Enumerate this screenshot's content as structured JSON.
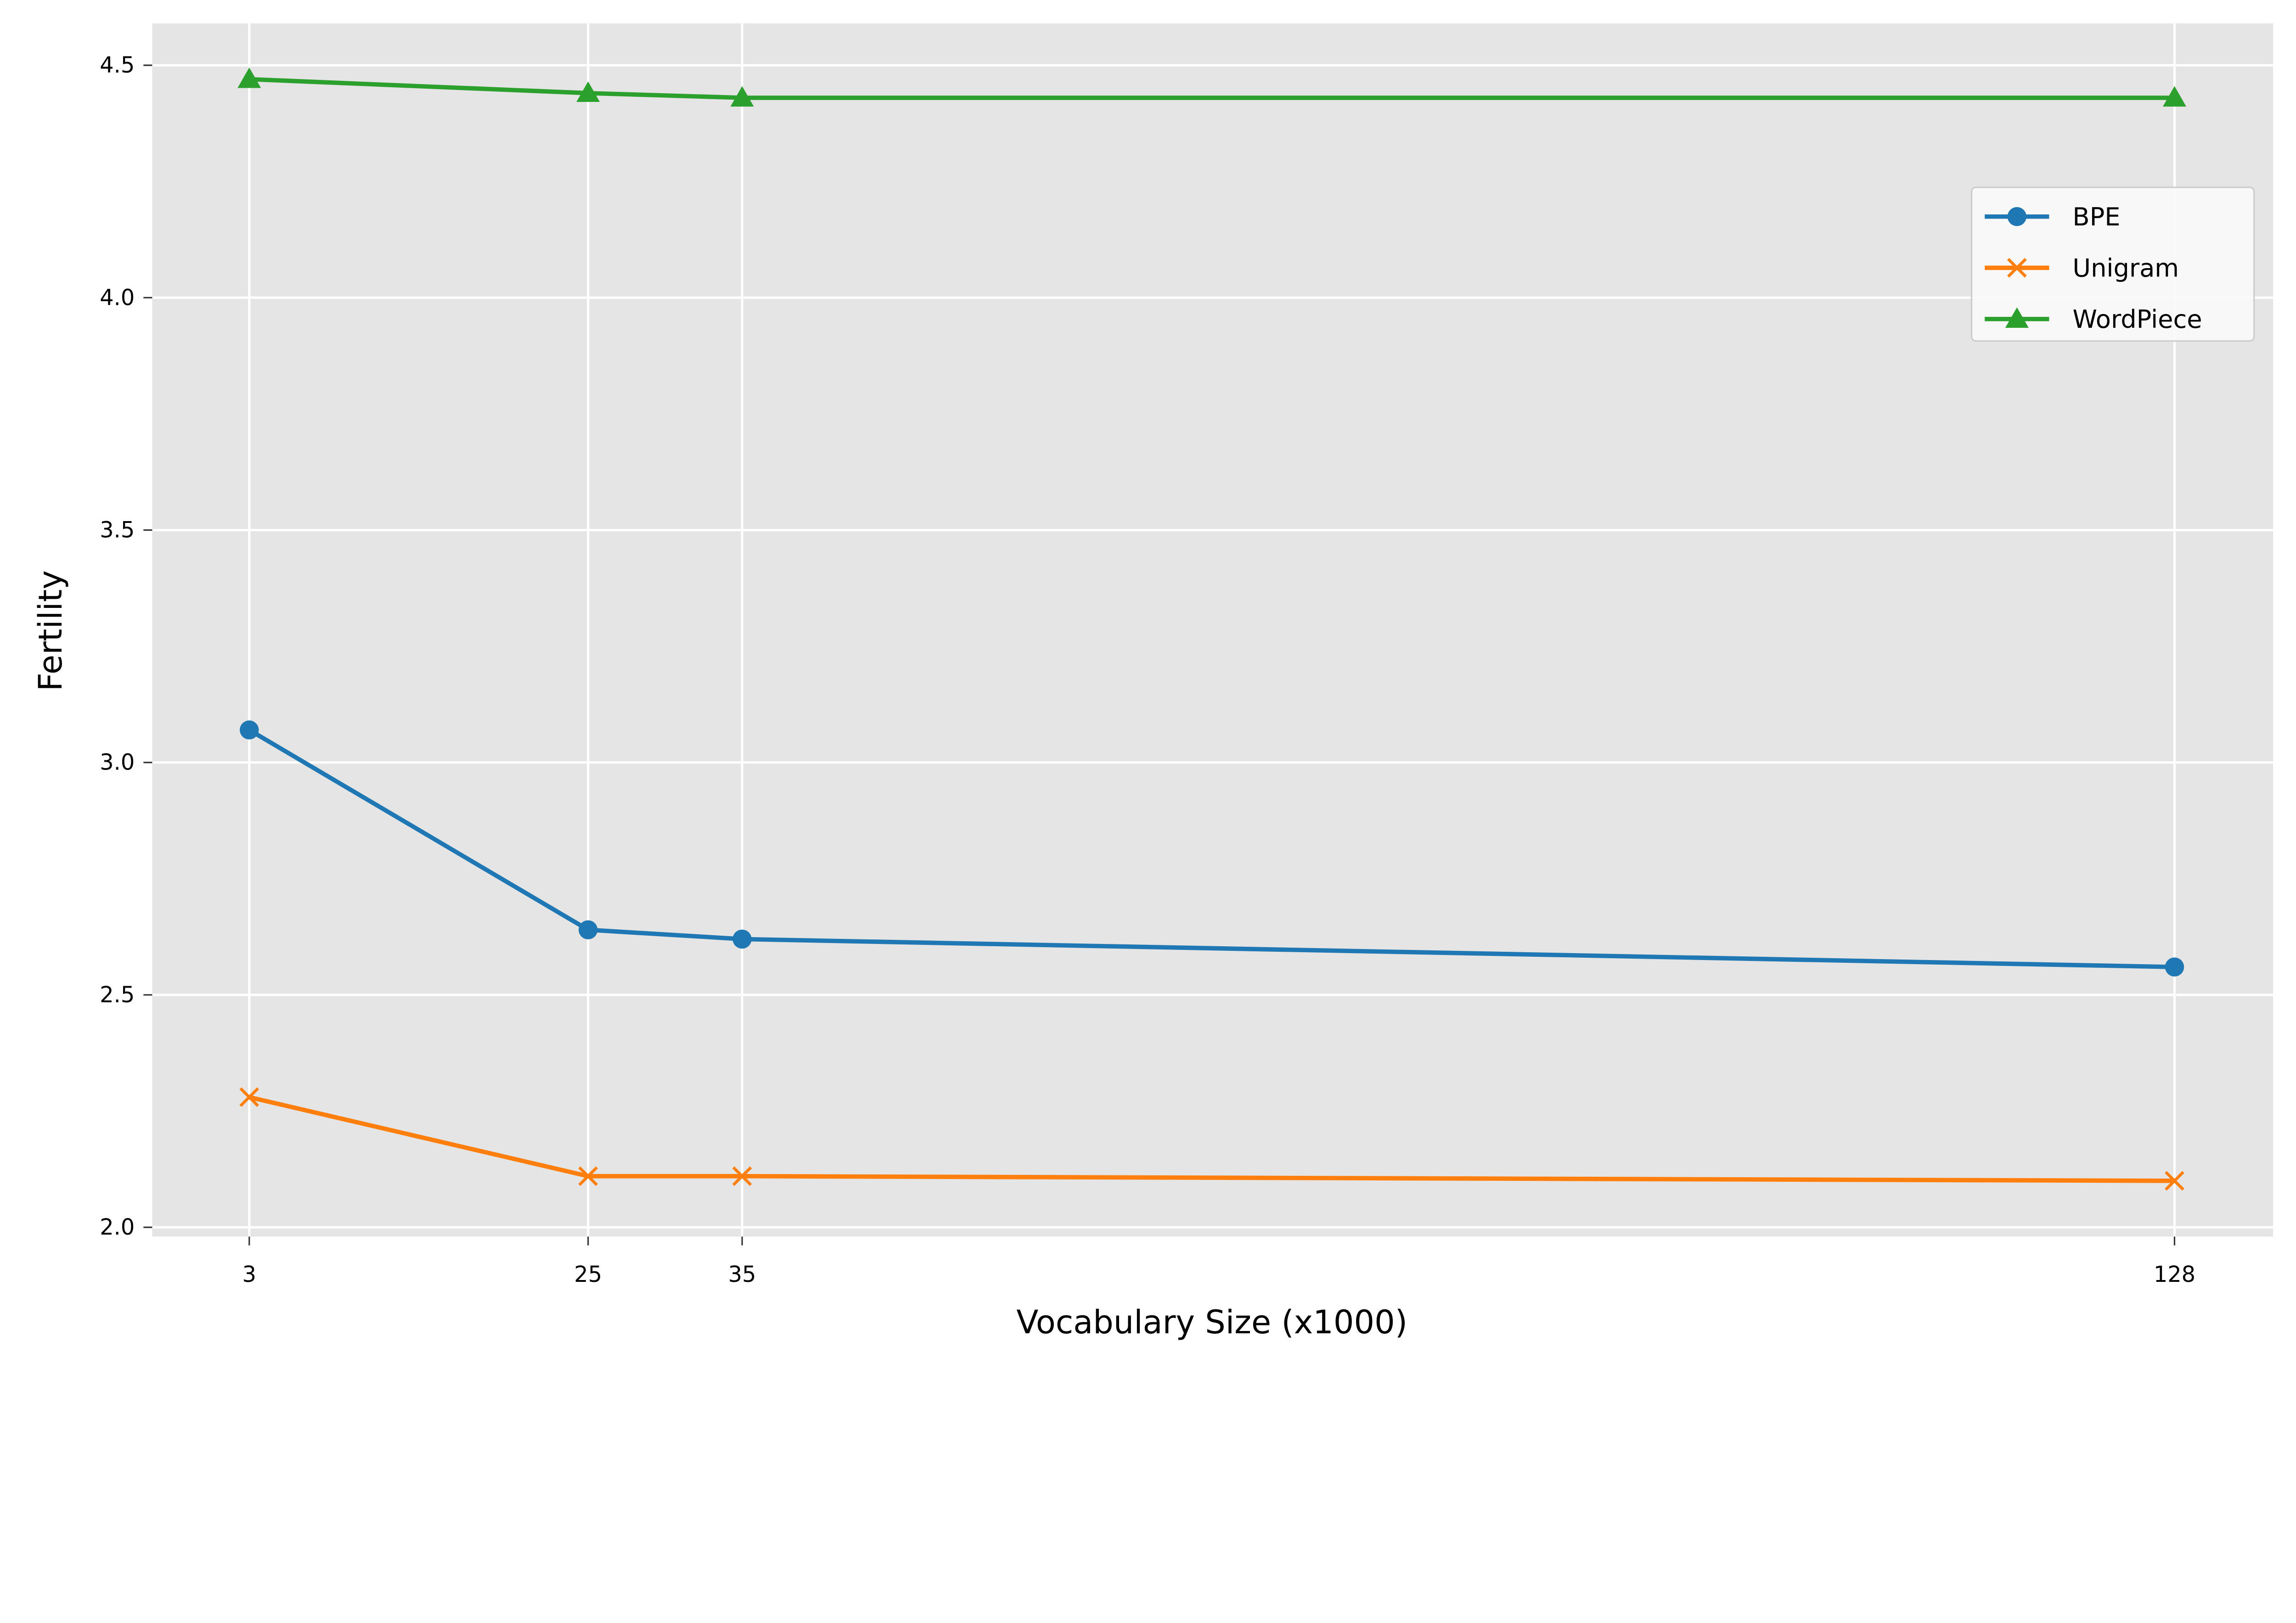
{
  "chart_data": {
    "type": "line",
    "title": "",
    "xlabel": "Vocabulary Size (x1000)",
    "ylabel": "Fertility",
    "x": [
      3,
      25,
      35,
      128
    ],
    "xticks": [
      "3",
      "25",
      "35",
      "128"
    ],
    "yticks": [
      "2.0",
      "2.5",
      "3.0",
      "3.5",
      "4.0",
      "4.5"
    ],
    "xlim": [
      -3.3,
      134.4
    ],
    "ylim": [
      1.98,
      4.59
    ],
    "grid": true,
    "legend_position": "upper-right",
    "series": [
      {
        "name": "BPE",
        "values": [
          3.07,
          2.64,
          2.62,
          2.56
        ],
        "color": "#1f77b4",
        "marker": "circle"
      },
      {
        "name": "Unigram",
        "values": [
          2.28,
          2.11,
          2.11,
          2.1
        ],
        "color": "#ff7f0e",
        "marker": "x"
      },
      {
        "name": "WordPiece",
        "values": [
          4.47,
          4.44,
          4.43,
          4.43
        ],
        "color": "#2ca02c",
        "marker": "triangle"
      }
    ]
  }
}
